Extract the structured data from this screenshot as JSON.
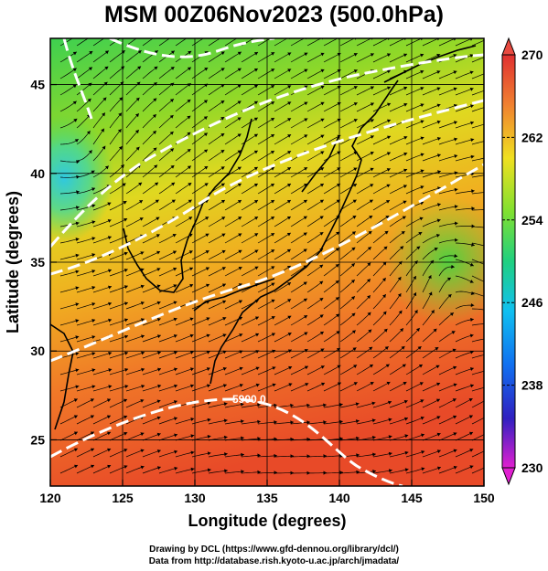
{
  "title": "MSM 00Z06Nov2023 (500.0hPa)",
  "axes": {
    "xlabel": "Longitude (degrees)",
    "ylabel": "Latitude  (degrees)",
    "xticks": [
      120,
      125,
      130,
      135,
      140,
      145,
      150
    ],
    "yticks": [
      25,
      30,
      35,
      40,
      45
    ],
    "xlim": [
      120,
      150
    ],
    "ylim": [
      22.4,
      47.6
    ]
  },
  "colorbar": {
    "ticks": [
      230,
      238,
      246,
      254,
      262,
      270
    ],
    "min": 230,
    "max": 270
  },
  "contour_label": "5900.0",
  "credits": [
    "Drawing by DCL (https://www.gfd-dennou.org/library/dcl/)",
    "Data from http://database.rish.kyoto-u.ac.jp/arch/jmadata/"
  ],
  "colors": {
    "warm": "#e8502a",
    "cool": "#3cc8d8",
    "contour": "#ffffff",
    "coast": "#000000"
  }
}
